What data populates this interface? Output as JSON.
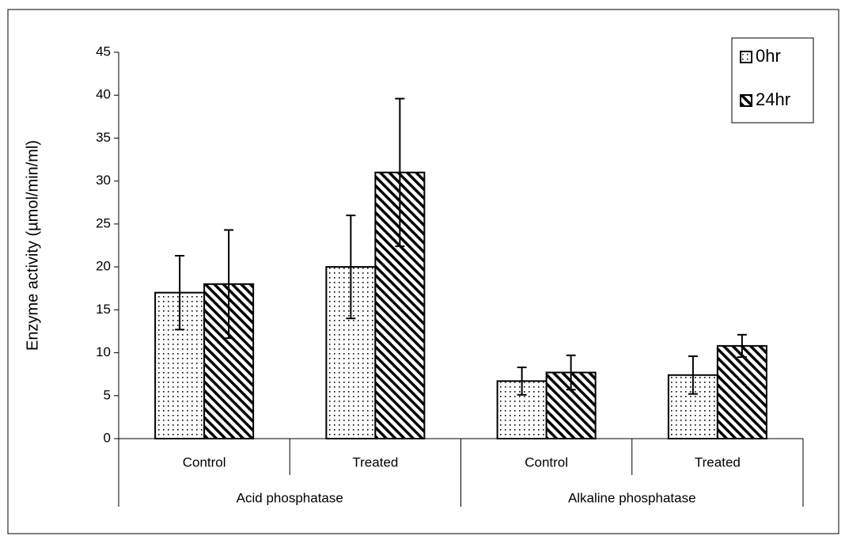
{
  "chart_data": {
    "type": "bar",
    "y_label": "Enzyme activity (µmol/min/ml)",
    "categories": [
      "Control",
      "Treated",
      "Control",
      "Treated"
    ],
    "group_labels": [
      "Acid phosphatase",
      "Alkaline phosphatase"
    ],
    "series": [
      {
        "name": "0hr",
        "color": "#000000",
        "pattern": "dots",
        "values": [
          17,
          20,
          6.7,
          7.4
        ],
        "errors": [
          4.3,
          6,
          1.6,
          2.2
        ]
      },
      {
        "name": "24hr",
        "color": "#000000",
        "pattern": "hatch",
        "values": [
          18,
          31,
          7.7,
          10.8
        ],
        "errors": [
          6.3,
          8.6,
          2,
          1.3
        ]
      }
    ],
    "ylim": [
      0,
      45
    ],
    "yticks": [
      0,
      5,
      10,
      15,
      20,
      25,
      30,
      35,
      40,
      45
    ],
    "grid": false,
    "legend": "upper right"
  }
}
